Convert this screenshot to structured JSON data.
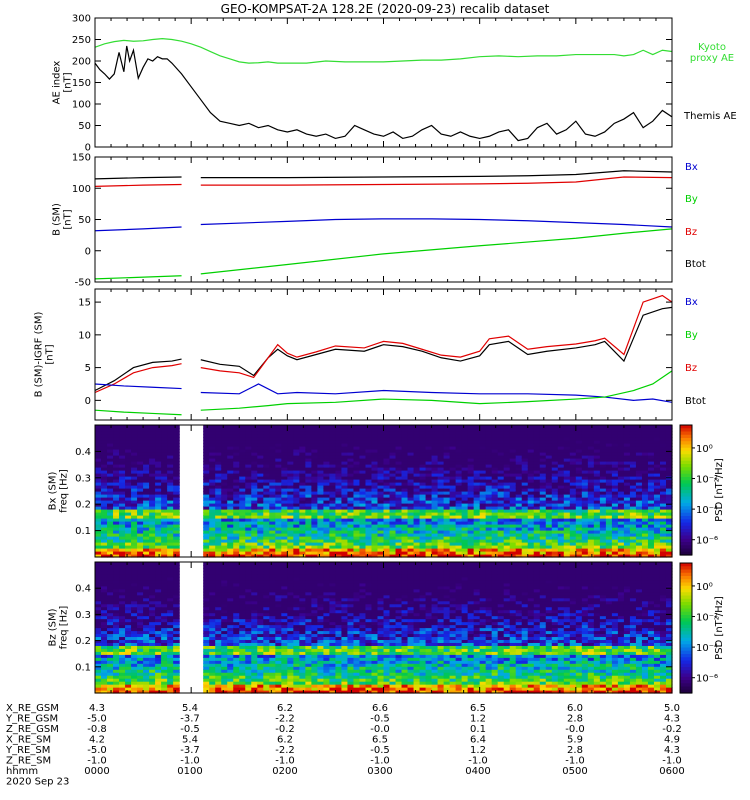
{
  "title": "GEO-KOMPSAT-2A 128.2E (2020-09-23) recalib dataset",
  "colors": {
    "black": "#000000",
    "red": "#e00000",
    "blue": "#0000d0",
    "green": "#00d000",
    "kyoto_green": "#33dd33",
    "gap": "#ffffff"
  },
  "chart_data": [
    {
      "id": "ae",
      "type": "line",
      "ylabel": "AE index\n[nT]",
      "ylim": [
        0,
        300
      ],
      "yticks": [
        "0",
        "50",
        "100",
        "150",
        "200",
        "250",
        "300"
      ],
      "xlim": [
        0,
        6
      ],
      "grid": false,
      "legend": [
        {
          "name": "Kyoto\nproxy AE",
          "color": "#33dd33"
        },
        {
          "name": "Themis AE",
          "color": "#000000"
        }
      ],
      "series": [
        {
          "name": "Themis AE",
          "color": "#000000",
          "x": [
            0,
            0.05,
            0.1,
            0.15,
            0.2,
            0.25,
            0.3,
            0.33,
            0.36,
            0.4,
            0.45,
            0.5,
            0.55,
            0.6,
            0.65,
            0.7,
            0.75,
            0.8,
            0.9,
            1.0,
            1.1,
            1.2,
            1.3,
            1.4,
            1.5,
            1.6,
            1.7,
            1.8,
            1.9,
            2.0,
            2.1,
            2.2,
            2.3,
            2.4,
            2.5,
            2.6,
            2.7,
            2.8,
            2.9,
            3.0,
            3.1,
            3.2,
            3.3,
            3.4,
            3.5,
            3.6,
            3.7,
            3.8,
            3.9,
            4.0,
            4.1,
            4.2,
            4.3,
            4.4,
            4.5,
            4.6,
            4.7,
            4.8,
            4.9,
            5.0,
            5.1,
            5.2,
            5.3,
            5.4,
            5.5,
            5.6,
            5.7,
            5.8,
            5.9,
            6.0
          ],
          "y": [
            195,
            180,
            170,
            158,
            170,
            220,
            175,
            235,
            200,
            225,
            160,
            185,
            205,
            200,
            210,
            205,
            205,
            195,
            170,
            140,
            110,
            80,
            60,
            55,
            50,
            55,
            45,
            50,
            40,
            35,
            40,
            30,
            25,
            30,
            20,
            25,
            50,
            40,
            30,
            25,
            35,
            20,
            25,
            40,
            50,
            30,
            25,
            35,
            25,
            20,
            25,
            35,
            40,
            15,
            20,
            45,
            55,
            30,
            40,
            60,
            30,
            25,
            35,
            55,
            65,
            80,
            45,
            60,
            85,
            70
          ]
        },
        {
          "name": "Kyoto proxy AE",
          "color": "#33dd33",
          "x": [
            0,
            0.1,
            0.2,
            0.3,
            0.4,
            0.5,
            0.6,
            0.7,
            0.8,
            0.9,
            1.0,
            1.1,
            1.2,
            1.3,
            1.4,
            1.5,
            1.6,
            1.7,
            1.8,
            1.9,
            2.0,
            2.2,
            2.4,
            2.6,
            2.8,
            3.0,
            3.2,
            3.4,
            3.6,
            3.8,
            4.0,
            4.2,
            4.4,
            4.6,
            4.8,
            5.0,
            5.2,
            5.4,
            5.5,
            5.6,
            5.7,
            5.8,
            5.9,
            6.0
          ],
          "y": [
            232,
            240,
            245,
            248,
            246,
            247,
            250,
            252,
            250,
            246,
            240,
            232,
            222,
            212,
            205,
            198,
            195,
            196,
            198,
            195,
            195,
            195,
            200,
            198,
            198,
            198,
            200,
            202,
            202,
            205,
            210,
            212,
            210,
            212,
            212,
            215,
            215,
            215,
            212,
            215,
            225,
            215,
            225,
            222
          ]
        }
      ]
    },
    {
      "id": "b",
      "type": "line",
      "ylabel": "B (SM)\n[nT]",
      "ylim": [
        -50,
        150
      ],
      "yticks": [
        "-50",
        "0",
        "50",
        "100",
        "150"
      ],
      "xlim": [
        0,
        6
      ],
      "gap": [
        0.9,
        1.1
      ],
      "legend": [
        {
          "name": "Bx",
          "color": "#0000d0"
        },
        {
          "name": "By",
          "color": "#00d000"
        },
        {
          "name": "Bz",
          "color": "#e00000"
        },
        {
          "name": "Btot",
          "color": "#000000"
        }
      ],
      "series": [
        {
          "name": "Btot",
          "color": "#000000",
          "x": [
            0,
            0.5,
            0.9,
            1.1,
            2,
            3,
            4,
            4.5,
            5,
            5.5,
            6
          ],
          "y": [
            115,
            117,
            118,
            117,
            117,
            118,
            119,
            120,
            122,
            128,
            126
          ]
        },
        {
          "name": "Bz",
          "color": "#e00000",
          "x": [
            0,
            0.5,
            0.9,
            1.1,
            2,
            3,
            4,
            4.5,
            5,
            5.5,
            6
          ],
          "y": [
            103,
            105,
            106,
            105,
            105,
            106,
            107,
            108,
            110,
            118,
            117
          ]
        },
        {
          "name": "Bx",
          "color": "#0000d0",
          "x": [
            0,
            0.5,
            0.9,
            1.1,
            2,
            2.5,
            3,
            3.5,
            4,
            4.5,
            5,
            5.5,
            6
          ],
          "y": [
            32,
            35,
            38,
            42,
            47,
            50,
            51,
            51,
            50,
            48,
            45,
            42,
            38
          ]
        },
        {
          "name": "By",
          "color": "#00d000",
          "x": [
            0,
            0.9,
            1.1,
            2,
            3,
            4,
            5,
            5.5,
            6
          ],
          "y": [
            -45,
            -40,
            -37,
            -22,
            -5,
            8,
            20,
            28,
            35
          ]
        }
      ]
    },
    {
      "id": "dB",
      "type": "line",
      "ylabel": "B (SM)-IGRF (SM)\n[nT]",
      "ylim": [
        -3,
        17
      ],
      "yticks": [
        "0",
        "5",
        "10",
        "15"
      ],
      "xlim": [
        0,
        6
      ],
      "gap": [
        0.9,
        1.1
      ],
      "legend": [
        {
          "name": "Bx",
          "color": "#0000d0"
        },
        {
          "name": "By",
          "color": "#00d000"
        },
        {
          "name": "Bz",
          "color": "#e00000"
        },
        {
          "name": "Btot",
          "color": "#000000"
        }
      ],
      "series": [
        {
          "name": "Btot",
          "color": "#000000",
          "x": [
            0,
            0.2,
            0.4,
            0.6,
            0.8,
            0.9,
            1.1,
            1.3,
            1.5,
            1.65,
            1.8,
            1.9,
            2.0,
            2.1,
            2.3,
            2.5,
            2.8,
            3.0,
            3.2,
            3.4,
            3.6,
            3.8,
            4.0,
            4.1,
            4.3,
            4.5,
            4.7,
            5.0,
            5.2,
            5.3,
            5.5,
            5.7,
            5.9,
            6.0
          ],
          "y": [
            1.5,
            3,
            5,
            5.8,
            6,
            6.3,
            6.2,
            5.5,
            5.2,
            3.8,
            6.5,
            7.8,
            6.8,
            6.2,
            7.0,
            7.8,
            7.5,
            8.5,
            8.2,
            7.5,
            6.5,
            6.0,
            6.8,
            8.5,
            9.0,
            7.0,
            7.5,
            8.0,
            8.5,
            9.0,
            6.0,
            13.0,
            14.0,
            14.2
          ]
        },
        {
          "name": "Bz",
          "color": "#e00000",
          "x": [
            0,
            0.2,
            0.4,
            0.6,
            0.8,
            0.9,
            1.1,
            1.3,
            1.5,
            1.65,
            1.8,
            1.9,
            2.0,
            2.1,
            2.3,
            2.5,
            2.8,
            3.0,
            3.2,
            3.4,
            3.6,
            3.8,
            4.0,
            4.1,
            4.3,
            4.5,
            4.7,
            5.0,
            5.2,
            5.3,
            5.5,
            5.7,
            5.9,
            6.0
          ],
          "y": [
            1.2,
            2.5,
            4.2,
            5.0,
            5.3,
            5.6,
            5.0,
            4.5,
            4.2,
            3.5,
            6.5,
            8.5,
            7.2,
            6.6,
            7.4,
            8.3,
            8.0,
            9.0,
            8.7,
            7.8,
            6.9,
            6.6,
            7.5,
            9.4,
            9.8,
            7.8,
            8.2,
            8.6,
            9.1,
            9.5,
            7.0,
            15.0,
            16.0,
            15.0
          ]
        },
        {
          "name": "Bx",
          "color": "#0000d0",
          "x": [
            0,
            0.3,
            0.6,
            0.9,
            1.1,
            1.5,
            1.7,
            1.9,
            2.1,
            2.5,
            3.0,
            3.5,
            4.0,
            4.5,
            5.0,
            5.3,
            5.6,
            5.8,
            6.0
          ],
          "y": [
            2.5,
            2.2,
            2.0,
            1.8,
            1.2,
            1.0,
            2.5,
            1.0,
            1.2,
            1.0,
            1.5,
            1.2,
            1.0,
            1.0,
            0.8,
            0.5,
            0,
            0.2,
            -0.3
          ]
        },
        {
          "name": "By",
          "color": "#00d000",
          "x": [
            0,
            0.3,
            0.6,
            0.9,
            1.1,
            1.5,
            1.8,
            2.0,
            2.5,
            3.0,
            3.5,
            4.0,
            4.5,
            5.0,
            5.3,
            5.6,
            5.8,
            6.0
          ],
          "y": [
            -1.5,
            -1.8,
            -2.0,
            -2.2,
            -1.5,
            -1.2,
            -0.8,
            -0.5,
            -0.3,
            0.2,
            0,
            -0.5,
            -0.2,
            0.2,
            0.5,
            1.5,
            2.5,
            4.5
          ]
        }
      ]
    },
    {
      "id": "bx_spec",
      "type": "heatmap",
      "ylabel": "Bx (SM)\nfreq [Hz]",
      "ylim": [
        0,
        0.5
      ],
      "yticks": [
        "0.1",
        "0.2",
        "0.3",
        "0.4"
      ],
      "xlim": [
        0,
        6
      ],
      "gap": [
        0.9,
        1.1
      ],
      "colorbar": {
        "label": "PSD [nT²/Hz]",
        "ticks": [
          "10⁰",
          "10⁻²",
          "10⁻⁴",
          "10⁻⁶"
        ],
        "log_range": [
          -7,
          1.5
        ]
      }
    },
    {
      "id": "bz_spec",
      "type": "heatmap",
      "ylabel": "Bz (SM)\nfreq [Hz]",
      "ylim": [
        0,
        0.5
      ],
      "yticks": [
        "0.1",
        "0.2",
        "0.3",
        "0.4"
      ],
      "xlim": [
        0,
        6
      ],
      "gap": [
        0.9,
        1.1
      ],
      "colorbar": {
        "label": "PSD [nT²/Hz]",
        "ticks": [
          "10⁰",
          "10⁻²",
          "10⁻⁴",
          "10⁻⁶"
        ],
        "log_range": [
          -7,
          1.5
        ]
      }
    }
  ],
  "ephemeris": {
    "rows": [
      {
        "label": "X_RE_GSM",
        "values": [
          "4.3",
          "5.4",
          "6.2",
          "6.6",
          "6.5",
          "6.0",
          "5.0"
        ]
      },
      {
        "label": "Y_RE_GSM",
        "values": [
          "-5.0",
          "-3.7",
          "-2.2",
          "-0.5",
          "1.2",
          "2.8",
          "4.3"
        ]
      },
      {
        "label": "Z_RE_GSM",
        "values": [
          "-0.8",
          "-0.5",
          "-0.2",
          "-0.0",
          "0.1",
          "-0.0",
          "-0.2"
        ]
      },
      {
        "label": "X_RE_SM",
        "values": [
          "4.2",
          "5.4",
          "6.2",
          "6.5",
          "6.4",
          "5.9",
          "4.9"
        ]
      },
      {
        "label": "Y_RE_SM",
        "values": [
          "-5.0",
          "-3.7",
          "-2.2",
          "-0.5",
          "1.2",
          "2.8",
          "4.3"
        ]
      },
      {
        "label": "Z_RE_SM",
        "values": [
          "-1.0",
          "-1.0",
          "-1.0",
          "-1.0",
          "-1.0",
          "-1.0",
          "-1.0"
        ]
      },
      {
        "label": "hhmm",
        "values": [
          "0000",
          "0100",
          "0200",
          "0300",
          "0400",
          "0500",
          "0600"
        ]
      }
    ],
    "date": "2020 Sep 23"
  }
}
